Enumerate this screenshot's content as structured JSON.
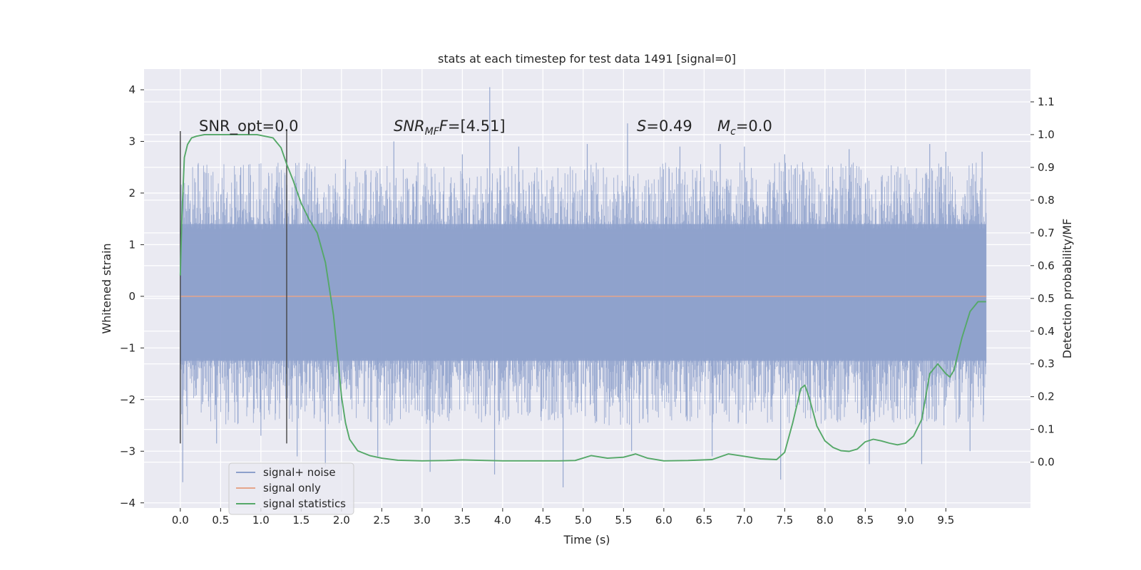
{
  "chart_data": {
    "type": "line",
    "title": "stats at each timestep for test data 1491 [signal=0]",
    "xlabel": "Time (s)",
    "ylabel": "Whitened strain",
    "y2label": "Detection probability/MF",
    "xlim": [
      -0.45,
      10.55
    ],
    "ylim": [
      -4.1,
      4.4
    ],
    "y2lim": [
      -0.14,
      1.2
    ],
    "grid": true,
    "xticks": [
      "0.0",
      "0.5",
      "1.0",
      "1.5",
      "2.0",
      "2.5",
      "3.0",
      "3.5",
      "4.0",
      "4.5",
      "5.0",
      "5.5",
      "6.0",
      "6.5",
      "7.0",
      "7.5",
      "8.0",
      "8.5",
      "9.0",
      "9.5"
    ],
    "yticks": [
      "4",
      "3",
      "2",
      "1",
      "0",
      "−1",
      "−2",
      "−3",
      "−4"
    ],
    "y2ticks": [
      "1.1",
      "1.0",
      "0.9",
      "0.8",
      "0.7",
      "0.6",
      "0.5",
      "0.4",
      "0.3",
      "0.2",
      "0.1",
      "0.0"
    ],
    "annotations": {
      "snr_opt": "SNR_opt=0.0",
      "snr_mf_sym": "SNR",
      "snr_mf_sub": "MF",
      "snr_mf_val": "=[4.51]",
      "s_sym": "S",
      "s_val": "=0.49",
      "mc_sym": "M",
      "mc_sub": "c",
      "mc_val": "=0.0"
    },
    "vlines": [
      {
        "x": 0.0,
        "ymin": -2.85,
        "ymax": 3.2
      },
      {
        "x": 1.32,
        "ymin": -2.85,
        "ymax": 3.2
      }
    ],
    "legend": {
      "position": "lower-left",
      "entries": [
        "signal+ noise",
        "signal only",
        "signal statistics"
      ]
    },
    "series": [
      {
        "name": "signal+ noise",
        "color": "#8da0cb",
        "x_range": [
          0.0,
          10.0
        ],
        "band": [
          -1.25,
          1.4
        ],
        "spikes": [
          [
            0.03,
            -3.6
          ],
          [
            0.1,
            2.15
          ],
          [
            0.45,
            -2.85
          ],
          [
            0.75,
            2.5
          ],
          [
            1.0,
            -2.7
          ],
          [
            1.2,
            2.2
          ],
          [
            1.45,
            -3.1
          ],
          [
            1.8,
            -3.3
          ],
          [
            2.05,
            2.65
          ],
          [
            2.45,
            -3.1
          ],
          [
            2.65,
            3.0
          ],
          [
            3.1,
            -3.4
          ],
          [
            3.5,
            2.75
          ],
          [
            3.84,
            4.05
          ],
          [
            3.9,
            -3.45
          ],
          [
            4.2,
            2.9
          ],
          [
            4.75,
            -3.7
          ],
          [
            5.05,
            2.95
          ],
          [
            5.55,
            3.35
          ],
          [
            5.6,
            -3.0
          ],
          [
            6.2,
            2.9
          ],
          [
            6.6,
            -3.1
          ],
          [
            6.7,
            2.95
          ],
          [
            7.0,
            2.9
          ],
          [
            7.45,
            -3.55
          ],
          [
            7.5,
            2.75
          ],
          [
            8.3,
            2.85
          ],
          [
            8.55,
            -3.25
          ],
          [
            9.2,
            -3.25
          ],
          [
            9.3,
            2.95
          ],
          [
            9.5,
            2.8
          ],
          [
            9.8,
            -3.0
          ],
          [
            9.95,
            2.8
          ]
        ]
      },
      {
        "name": "signal only",
        "color": "#e5a58b",
        "x": [
          0.0,
          10.0
        ],
        "values": [
          0.0,
          0.0
        ]
      },
      {
        "name": "signal statistics",
        "color": "#55a868",
        "axis": "right",
        "x": [
          0.0,
          0.02,
          0.05,
          0.09,
          0.14,
          0.2,
          0.3,
          0.45,
          0.6,
          0.8,
          0.95,
          1.05,
          1.15,
          1.25,
          1.32,
          1.4,
          1.5,
          1.6,
          1.7,
          1.8,
          1.9,
          1.95,
          2.0,
          2.05,
          2.1,
          2.2,
          2.35,
          2.5,
          2.7,
          3.0,
          3.3,
          3.5,
          3.8,
          4.0,
          4.3,
          4.7,
          4.9,
          5.1,
          5.3,
          5.5,
          5.65,
          5.8,
          6.0,
          6.3,
          6.6,
          6.8,
          7.0,
          7.2,
          7.4,
          7.5,
          7.6,
          7.7,
          7.75,
          7.8,
          7.85,
          7.9,
          8.0,
          8.1,
          8.2,
          8.3,
          8.4,
          8.5,
          8.6,
          8.7,
          8.8,
          8.9,
          9.0,
          9.1,
          9.2,
          9.3,
          9.4,
          9.5,
          9.55,
          9.6,
          9.7,
          9.8,
          9.9,
          10.0
        ],
        "values": [
          0.57,
          0.75,
          0.93,
          0.97,
          0.99,
          0.995,
          1.0,
          1.0,
          1.0,
          1.0,
          1.0,
          0.995,
          0.99,
          0.96,
          0.91,
          0.86,
          0.79,
          0.74,
          0.7,
          0.61,
          0.45,
          0.33,
          0.2,
          0.12,
          0.07,
          0.035,
          0.02,
          0.012,
          0.006,
          0.004,
          0.005,
          0.007,
          0.005,
          0.004,
          0.004,
          0.004,
          0.005,
          0.02,
          0.012,
          0.015,
          0.025,
          0.012,
          0.004,
          0.005,
          0.008,
          0.025,
          0.018,
          0.01,
          0.008,
          0.03,
          0.12,
          0.225,
          0.235,
          0.2,
          0.155,
          0.11,
          0.065,
          0.045,
          0.035,
          0.033,
          0.04,
          0.062,
          0.07,
          0.065,
          0.058,
          0.053,
          0.058,
          0.08,
          0.13,
          0.27,
          0.3,
          0.27,
          0.26,
          0.28,
          0.38,
          0.46,
          0.49,
          0.49
        ]
      }
    ]
  }
}
